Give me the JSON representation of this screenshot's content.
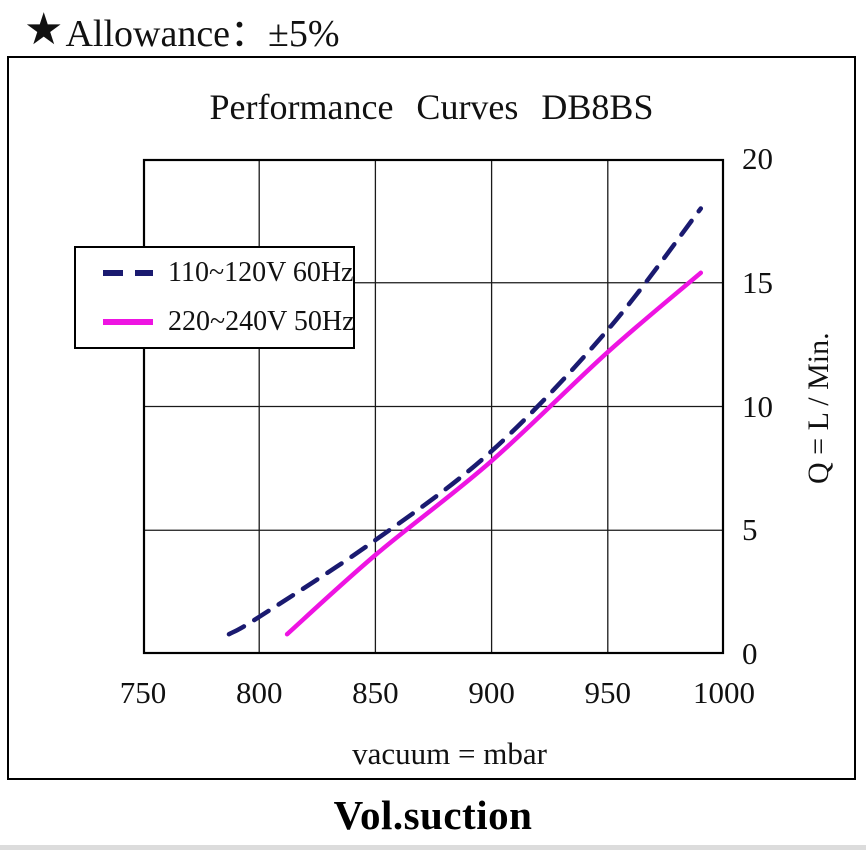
{
  "header": {
    "star": "★",
    "text": "Allowance：±5%"
  },
  "footer": {
    "title": "Vol.suction"
  },
  "chart_data": {
    "type": "line",
    "title": "Performance  Curves  DB8BS",
    "xlabel": "vacuum = mbar",
    "ylabel": "Q = L / Min.",
    "xlim": [
      750,
      1000
    ],
    "ylim": [
      0,
      20
    ],
    "x_ticks": [
      750,
      800,
      850,
      900,
      950,
      1000
    ],
    "y_ticks": [
      0,
      5,
      10,
      15,
      20
    ],
    "grid": true,
    "grid_color": "#1a1a1a",
    "legend_position": "upper-left-inside",
    "series": [
      {
        "name": "110~120V 60Hz",
        "color": "#1a1a70",
        "style": "dashed",
        "points": [
          [
            787,
            0.8
          ],
          [
            800,
            1.5
          ],
          [
            850,
            4.6
          ],
          [
            900,
            8.2
          ],
          [
            950,
            13.1
          ],
          [
            990,
            18.0
          ]
        ]
      },
      {
        "name": "220~240V 50Hz",
        "color": "#ee14e2",
        "style": "solid",
        "points": [
          [
            812,
            0.8
          ],
          [
            850,
            4.0
          ],
          [
            900,
            7.8
          ],
          [
            950,
            12.2
          ],
          [
            990,
            15.4
          ]
        ]
      }
    ]
  }
}
